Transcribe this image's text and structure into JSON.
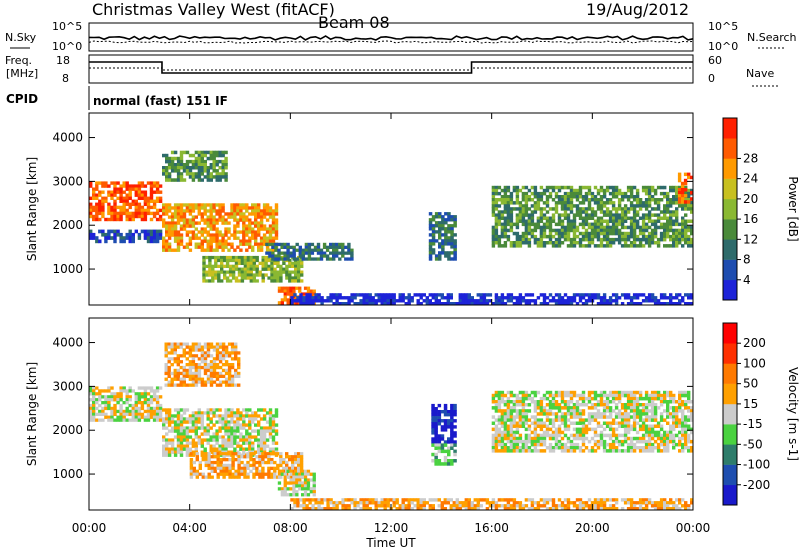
{
  "header": {
    "site": "Christmas Valley West (fitACF)",
    "beam": "Beam 08",
    "date": "19/Aug/2012"
  },
  "status_panel": {
    "nsky_label": "N.Sky",
    "nsearch_label": "N.Search",
    "nsky_top_tick": "10^5",
    "nsky_bottom_tick": "10^0",
    "nsearch_top_tick": "10^5",
    "nsearch_bottom_tick": "10^0",
    "freq_label_1": "Freq.",
    "freq_label_2": "[MHz]",
    "freq_top_tick": "18",
    "freq_bottom_tick": "8",
    "nave_label": "Nave",
    "nave_top_tick": "60",
    "nave_bottom_tick": "0",
    "cpid_label": "CPID",
    "cpid_value": "normal (fast) 151 IF"
  },
  "chart_data": [
    {
      "type": "heatmap",
      "name": "Power",
      "ylabel": "Slant Range [km]",
      "xlabel": "",
      "x_ticks": [
        "00:00",
        "04:00",
        "08:00",
        "12:00",
        "16:00",
        "20:00",
        "00:00"
      ],
      "x_range_hours": [
        0,
        24
      ],
      "y_ticks": [
        "1000",
        "2000",
        "3000",
        "4000"
      ],
      "ylim": [
        180,
        4560
      ],
      "colorbar": {
        "label": "Power [dB]",
        "ticks": [
          "4",
          "8",
          "12",
          "16",
          "20",
          "24",
          "28"
        ],
        "colors": [
          "#1d23d8",
          "#1e4db0",
          "#2e6b6b",
          "#4a8a3a",
          "#8ab832",
          "#c8c020",
          "#ff9a00",
          "#ff5a00",
          "#ff2000"
        ]
      },
      "regions": [
        {
          "t0": 0.0,
          "t1": 2.9,
          "r0": 2100,
          "r1": 3000,
          "level": 7
        },
        {
          "t0": 0.0,
          "t1": 2.9,
          "r0": 1600,
          "r1": 1900,
          "level": 1
        },
        {
          "t0": 2.9,
          "t1": 7.5,
          "r0": 1400,
          "r1": 2500,
          "level": 6
        },
        {
          "t0": 2.9,
          "t1": 5.5,
          "r0": 3000,
          "r1": 3700,
          "level": 3
        },
        {
          "t0": 4.5,
          "t1": 8.5,
          "r0": 700,
          "r1": 1300,
          "level": 4
        },
        {
          "t0": 7.5,
          "t1": 9.0,
          "r0": 200,
          "r1": 600,
          "level": 7
        },
        {
          "t0": 7.0,
          "t1": 10.5,
          "r0": 1200,
          "r1": 1600,
          "level": 2
        },
        {
          "t0": 13.5,
          "t1": 14.6,
          "r0": 1200,
          "r1": 2300,
          "level": 2
        },
        {
          "t0": 16.0,
          "t1": 24.0,
          "r0": 1500,
          "r1": 2900,
          "level": 3
        },
        {
          "t0": 23.4,
          "t1": 24.0,
          "r0": 2500,
          "r1": 3200,
          "level": 7
        },
        {
          "t0": 8.0,
          "t1": 24.0,
          "r0": 180,
          "r1": 450,
          "level": 0
        }
      ]
    },
    {
      "type": "heatmap",
      "name": "Velocity",
      "ylabel": "Slant Range [km]",
      "xlabel": "Time UT",
      "x_ticks": [
        "00:00",
        "04:00",
        "08:00",
        "12:00",
        "16:00",
        "20:00",
        "00:00"
      ],
      "x_range_hours": [
        0,
        24
      ],
      "y_ticks": [
        "1000",
        "2000",
        "3000",
        "4000"
      ],
      "ylim": [
        180,
        4560
      ],
      "colorbar": {
        "label": "Velocity [m s-1]",
        "ticks": [
          "200",
          "100",
          "50",
          "15",
          "-15",
          "-50",
          "-100",
          "-200"
        ],
        "colors": [
          "#1a1acb",
          "#1e4eb0",
          "#2e7d6b",
          "#4ad240",
          "#cccccc",
          "#ffa000",
          "#ff7a00",
          "#ff3000",
          "#ff0000"
        ]
      },
      "regions": [
        {
          "t0": 0.0,
          "t1": 2.9,
          "r0": 2200,
          "r1": 3000,
          "level": 4
        },
        {
          "t0": 2.9,
          "t1": 7.5,
          "r0": 1400,
          "r1": 2500,
          "level": 4
        },
        {
          "t0": 3.0,
          "t1": 6.0,
          "r0": 3000,
          "r1": 4000,
          "level": 5
        },
        {
          "t0": 4.0,
          "t1": 8.5,
          "r0": 900,
          "r1": 1500,
          "level": 5
        },
        {
          "t0": 7.5,
          "t1": 9.0,
          "r0": 500,
          "r1": 1100,
          "level": 4
        },
        {
          "t0": 13.6,
          "t1": 14.6,
          "r0": 1700,
          "r1": 2600,
          "level": 0
        },
        {
          "t0": 13.6,
          "t1": 14.6,
          "r0": 1200,
          "r1": 1700,
          "level": 3
        },
        {
          "t0": 16.0,
          "t1": 24.0,
          "r0": 1500,
          "r1": 2900,
          "level": 4
        },
        {
          "t0": 8.0,
          "t1": 24.0,
          "r0": 180,
          "r1": 450,
          "level": 5
        }
      ]
    }
  ]
}
